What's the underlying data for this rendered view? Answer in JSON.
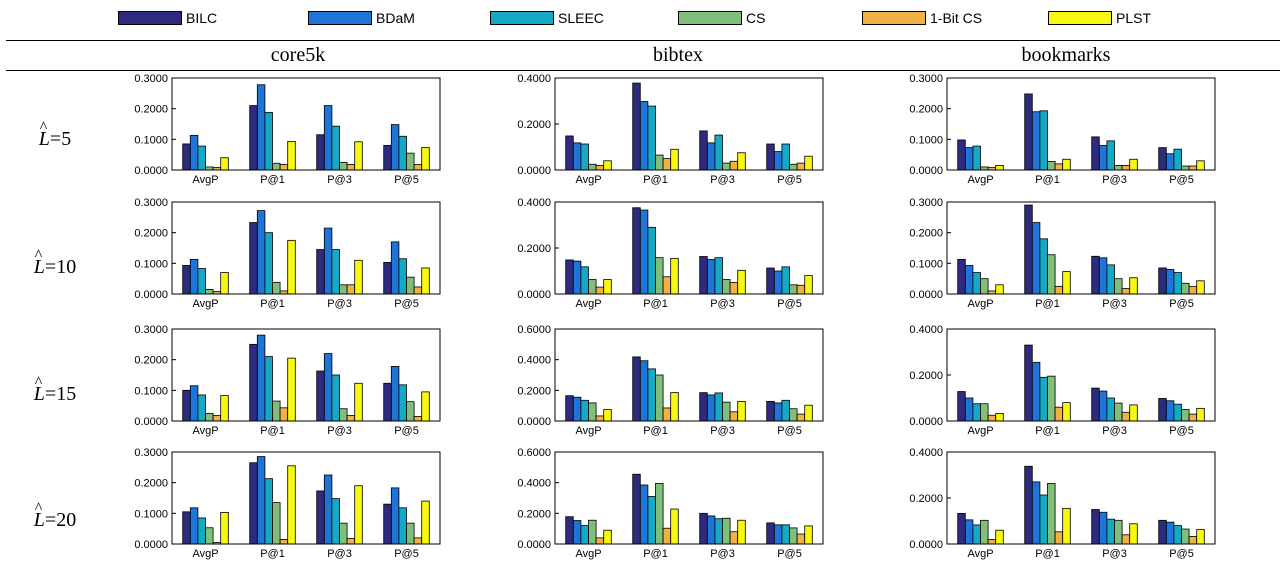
{
  "legend": [
    {
      "name": "BILC",
      "color": "#2e2a7e"
    },
    {
      "name": "BDaM",
      "color": "#1f74d8"
    },
    {
      "name": "SLEEC",
      "color": "#15a9c6"
    },
    {
      "name": "CS",
      "color": "#7fbf7b"
    },
    {
      "name": "1-Bit CS",
      "color": "#f0b245"
    },
    {
      "name": "PLST",
      "color": "#f7f70f"
    }
  ],
  "columns": [
    "core5k",
    "bibtex",
    "bookmarks"
  ],
  "rows": [
    {
      "label_sym": "L",
      "label_hat": "^",
      "label_value": "=5"
    },
    {
      "label_sym": "L",
      "label_hat": "^",
      "label_value": "=10"
    },
    {
      "label_sym": "L",
      "label_hat": "^",
      "label_value": "=15"
    },
    {
      "label_sym": "L",
      "label_hat": "^",
      "label_value": "=20"
    }
  ],
  "chart_data": [
    {
      "type": "bar",
      "dataset": "core5k",
      "row": "L=5",
      "categories": [
        "AvgP",
        "P@1",
        "P@3",
        "P@5"
      ],
      "ylim": [
        0,
        0.3
      ],
      "yticks": [
        "0.0000",
        "0.1000",
        "0.2000",
        "0.3000"
      ],
      "series": [
        {
          "name": "BILC",
          "values": [
            0.085,
            0.21,
            0.115,
            0.08
          ]
        },
        {
          "name": "BDaM",
          "values": [
            0.113,
            0.278,
            0.21,
            0.148
          ]
        },
        {
          "name": "SLEEC",
          "values": [
            0.078,
            0.188,
            0.143,
            0.11
          ]
        },
        {
          "name": "CS",
          "values": [
            0.01,
            0.022,
            0.025,
            0.055
          ]
        },
        {
          "name": "1-Bit CS",
          "values": [
            0.008,
            0.018,
            0.018,
            0.018
          ]
        },
        {
          "name": "PLST",
          "values": [
            0.04,
            0.093,
            0.092,
            0.073
          ]
        }
      ]
    },
    {
      "type": "bar",
      "dataset": "bibtex",
      "row": "L=5",
      "categories": [
        "AvgP",
        "P@1",
        "P@3",
        "P@5"
      ],
      "ylim": [
        0,
        0.4
      ],
      "yticks": [
        "0.0000",
        "0.2000",
        "0.4000"
      ],
      "series": [
        {
          "name": "BILC",
          "values": [
            0.148,
            0.378,
            0.17,
            0.113
          ]
        },
        {
          "name": "BDaM",
          "values": [
            0.118,
            0.298,
            0.118,
            0.08
          ]
        },
        {
          "name": "SLEEC",
          "values": [
            0.113,
            0.278,
            0.152,
            0.113
          ]
        },
        {
          "name": "CS",
          "values": [
            0.025,
            0.065,
            0.03,
            0.025
          ]
        },
        {
          "name": "1-Bit CS",
          "values": [
            0.02,
            0.05,
            0.038,
            0.03
          ]
        },
        {
          "name": "PLST",
          "values": [
            0.04,
            0.09,
            0.075,
            0.06
          ]
        }
      ]
    },
    {
      "type": "bar",
      "dataset": "bookmarks",
      "row": "L=5",
      "categories": [
        "AvgP",
        "P@1",
        "P@3",
        "P@5"
      ],
      "ylim": [
        0,
        0.3
      ],
      "yticks": [
        "0.0000",
        "0.1000",
        "0.2000",
        "0.3000"
      ],
      "series": [
        {
          "name": "BILC",
          "values": [
            0.098,
            0.248,
            0.108,
            0.073
          ]
        },
        {
          "name": "BDaM",
          "values": [
            0.073,
            0.19,
            0.08,
            0.053
          ]
        },
        {
          "name": "SLEEC",
          "values": [
            0.078,
            0.193,
            0.095,
            0.068
          ]
        },
        {
          "name": "CS",
          "values": [
            0.01,
            0.028,
            0.015,
            0.013
          ]
        },
        {
          "name": "1-Bit CS",
          "values": [
            0.008,
            0.02,
            0.015,
            0.013
          ]
        },
        {
          "name": "PLST",
          "values": [
            0.015,
            0.035,
            0.035,
            0.03
          ]
        }
      ]
    },
    {
      "type": "bar",
      "dataset": "core5k",
      "row": "L=10",
      "categories": [
        "AvgP",
        "P@1",
        "P@3",
        "P@5"
      ],
      "ylim": [
        0,
        0.3
      ],
      "yticks": [
        "0.0000",
        "0.1000",
        "0.2000",
        "0.3000"
      ],
      "series": [
        {
          "name": "BILC",
          "values": [
            0.093,
            0.233,
            0.145,
            0.103
          ]
        },
        {
          "name": "BDaM",
          "values": [
            0.113,
            0.272,
            0.215,
            0.17
          ]
        },
        {
          "name": "SLEEC",
          "values": [
            0.083,
            0.2,
            0.145,
            0.115
          ]
        },
        {
          "name": "CS",
          "values": [
            0.015,
            0.038,
            0.03,
            0.055
          ]
        },
        {
          "name": "1-Bit CS",
          "values": [
            0.008,
            0.01,
            0.03,
            0.023
          ]
        },
        {
          "name": "PLST",
          "values": [
            0.07,
            0.175,
            0.11,
            0.085
          ]
        }
      ]
    },
    {
      "type": "bar",
      "dataset": "bibtex",
      "row": "L=10",
      "categories": [
        "AvgP",
        "P@1",
        "P@3",
        "P@5"
      ],
      "ylim": [
        0,
        0.4
      ],
      "yticks": [
        "0.0000",
        "0.2000",
        "0.4000"
      ],
      "series": [
        {
          "name": "BILC",
          "values": [
            0.148,
            0.375,
            0.163,
            0.113
          ]
        },
        {
          "name": "BDaM",
          "values": [
            0.143,
            0.365,
            0.15,
            0.1
          ]
        },
        {
          "name": "SLEEC",
          "values": [
            0.118,
            0.29,
            0.158,
            0.118
          ]
        },
        {
          "name": "CS",
          "values": [
            0.063,
            0.158,
            0.063,
            0.04
          ]
        },
        {
          "name": "1-Bit CS",
          "values": [
            0.03,
            0.075,
            0.05,
            0.038
          ]
        },
        {
          "name": "PLST",
          "values": [
            0.063,
            0.155,
            0.103,
            0.08
          ]
        }
      ]
    },
    {
      "type": "bar",
      "dataset": "bookmarks",
      "row": "L=10",
      "categories": [
        "AvgP",
        "P@1",
        "P@3",
        "P@5"
      ],
      "ylim": [
        0,
        0.3
      ],
      "yticks": [
        "0.0000",
        "0.1000",
        "0.2000",
        "0.3000"
      ],
      "series": [
        {
          "name": "BILC",
          "values": [
            0.113,
            0.29,
            0.123,
            0.085
          ]
        },
        {
          "name": "BDaM",
          "values": [
            0.093,
            0.233,
            0.118,
            0.08
          ]
        },
        {
          "name": "SLEEC",
          "values": [
            0.07,
            0.18,
            0.095,
            0.07
          ]
        },
        {
          "name": "CS",
          "values": [
            0.05,
            0.128,
            0.05,
            0.035
          ]
        },
        {
          "name": "1-Bit CS",
          "values": [
            0.01,
            0.025,
            0.018,
            0.025
          ]
        },
        {
          "name": "PLST",
          "values": [
            0.03,
            0.073,
            0.053,
            0.043
          ]
        }
      ]
    },
    {
      "type": "bar",
      "dataset": "core5k",
      "row": "L=15",
      "categories": [
        "AvgP",
        "P@1",
        "P@3",
        "P@5"
      ],
      "ylim": [
        0,
        0.3
      ],
      "yticks": [
        "0.0000",
        "0.1000",
        "0.2000",
        "0.3000"
      ],
      "series": [
        {
          "name": "BILC",
          "values": [
            0.1,
            0.25,
            0.163,
            0.123
          ]
        },
        {
          "name": "BDaM",
          "values": [
            0.115,
            0.28,
            0.22,
            0.178
          ]
        },
        {
          "name": "SLEEC",
          "values": [
            0.085,
            0.21,
            0.15,
            0.118
          ]
        },
        {
          "name": "CS",
          "values": [
            0.025,
            0.065,
            0.04,
            0.063
          ]
        },
        {
          "name": "1-Bit CS",
          "values": [
            0.018,
            0.043,
            0.018,
            0.015
          ]
        },
        {
          "name": "PLST",
          "values": [
            0.083,
            0.205,
            0.123,
            0.095
          ]
        }
      ]
    },
    {
      "type": "bar",
      "dataset": "bibtex",
      "row": "L=15",
      "categories": [
        "AvgP",
        "P@1",
        "P@3",
        "P@5"
      ],
      "ylim": [
        0,
        0.6
      ],
      "yticks": [
        "0.0000",
        "0.2000",
        "0.4000",
        "0.6000"
      ],
      "series": [
        {
          "name": "BILC",
          "values": [
            0.165,
            0.418,
            0.185,
            0.128
          ]
        },
        {
          "name": "BDaM",
          "values": [
            0.155,
            0.393,
            0.17,
            0.118
          ]
        },
        {
          "name": "SLEEC",
          "values": [
            0.135,
            0.34,
            0.183,
            0.135
          ]
        },
        {
          "name": "CS",
          "values": [
            0.118,
            0.3,
            0.123,
            0.08
          ]
        },
        {
          "name": "1-Bit CS",
          "values": [
            0.033,
            0.085,
            0.06,
            0.045
          ]
        },
        {
          "name": "PLST",
          "values": [
            0.075,
            0.185,
            0.128,
            0.103
          ]
        }
      ]
    },
    {
      "type": "bar",
      "dataset": "bookmarks",
      "row": "L=15",
      "categories": [
        "AvgP",
        "P@1",
        "P@3",
        "P@5"
      ],
      "ylim": [
        0,
        0.4
      ],
      "yticks": [
        "0.0000",
        "0.2000",
        "0.4000"
      ],
      "series": [
        {
          "name": "BILC",
          "values": [
            0.128,
            0.33,
            0.143,
            0.098
          ]
        },
        {
          "name": "BDaM",
          "values": [
            0.1,
            0.255,
            0.13,
            0.088
          ]
        },
        {
          "name": "SLEEC",
          "values": [
            0.075,
            0.19,
            0.1,
            0.073
          ]
        },
        {
          "name": "CS",
          "values": [
            0.075,
            0.195,
            0.078,
            0.05
          ]
        },
        {
          "name": "1-Bit CS",
          "values": [
            0.025,
            0.06,
            0.038,
            0.03
          ]
        },
        {
          "name": "PLST",
          "values": [
            0.033,
            0.08,
            0.07,
            0.055
          ]
        }
      ]
    },
    {
      "type": "bar",
      "dataset": "core5k",
      "row": "L=20",
      "categories": [
        "AvgP",
        "P@1",
        "P@3",
        "P@5"
      ],
      "ylim": [
        0,
        0.3
      ],
      "yticks": [
        "0.0000",
        "0.1000",
        "0.2000",
        "0.3000"
      ],
      "series": [
        {
          "name": "BILC",
          "values": [
            0.105,
            0.265,
            0.173,
            0.13
          ]
        },
        {
          "name": "BDaM",
          "values": [
            0.118,
            0.285,
            0.225,
            0.183
          ]
        },
        {
          "name": "SLEEC",
          "values": [
            0.085,
            0.213,
            0.148,
            0.118
          ]
        },
        {
          "name": "CS",
          "values": [
            0.053,
            0.135,
            0.068,
            0.068
          ]
        },
        {
          "name": "1-Bit CS",
          "values": [
            0.005,
            0.015,
            0.018,
            0.02
          ]
        },
        {
          "name": "PLST",
          "values": [
            0.103,
            0.255,
            0.19,
            0.14
          ]
        }
      ]
    },
    {
      "type": "bar",
      "dataset": "bibtex",
      "row": "L=20",
      "categories": [
        "AvgP",
        "P@1",
        "P@3",
        "P@5"
      ],
      "ylim": [
        0,
        0.6
      ],
      "yticks": [
        "0.0000",
        "0.2000",
        "0.4000",
        "0.6000"
      ],
      "series": [
        {
          "name": "BILC",
          "values": [
            0.178,
            0.455,
            0.2,
            0.138
          ]
        },
        {
          "name": "BDaM",
          "values": [
            0.153,
            0.385,
            0.183,
            0.125
          ]
        },
        {
          "name": "SLEEC",
          "values": [
            0.12,
            0.31,
            0.165,
            0.125
          ]
        },
        {
          "name": "CS",
          "values": [
            0.155,
            0.395,
            0.168,
            0.105
          ]
        },
        {
          "name": "1-Bit CS",
          "values": [
            0.04,
            0.103,
            0.08,
            0.065
          ]
        },
        {
          "name": "PLST",
          "values": [
            0.09,
            0.228,
            0.155,
            0.118
          ]
        }
      ]
    },
    {
      "type": "bar",
      "dataset": "bookmarks",
      "row": "L=20",
      "categories": [
        "AvgP",
        "P@1",
        "P@3",
        "P@5"
      ],
      "ylim": [
        0,
        0.4
      ],
      "yticks": [
        "0.0000",
        "0.2000",
        "0.4000"
      ],
      "series": [
        {
          "name": "BILC",
          "values": [
            0.133,
            0.338,
            0.15,
            0.103
          ]
        },
        {
          "name": "BDaM",
          "values": [
            0.105,
            0.27,
            0.138,
            0.095
          ]
        },
        {
          "name": "SLEEC",
          "values": [
            0.083,
            0.213,
            0.108,
            0.08
          ]
        },
        {
          "name": "CS",
          "values": [
            0.103,
            0.263,
            0.103,
            0.065
          ]
        },
        {
          "name": "1-Bit CS",
          "values": [
            0.02,
            0.053,
            0.04,
            0.033
          ]
        },
        {
          "name": "PLST",
          "values": [
            0.06,
            0.155,
            0.088,
            0.063
          ]
        }
      ]
    }
  ]
}
